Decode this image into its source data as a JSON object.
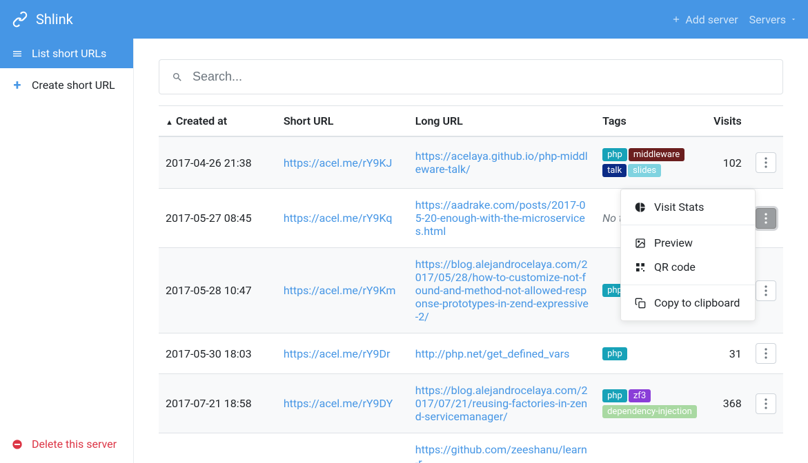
{
  "brand": "Shlink",
  "navbar": {
    "add_server": "Add server",
    "servers": "Servers"
  },
  "sidebar": {
    "list_urls": "List short URLs",
    "create_url": "Create short URL",
    "delete_server": "Delete this server"
  },
  "search": {
    "placeholder": "Search..."
  },
  "table": {
    "headers": {
      "created": "Created at",
      "short": "Short URL",
      "long": "Long URL",
      "tags": "Tags",
      "visits": "Visits"
    },
    "no_tags_label": "No tags",
    "rows": [
      {
        "created": "2017-04-26 21:38",
        "short": "https://acel.me/rY9KJ",
        "long": "https://acelaya.github.io/php-middleware-talk/",
        "tags": [
          {
            "label": "php",
            "color": "#17a2b8"
          },
          {
            "label": "middleware",
            "color": "#6b1e1e"
          },
          {
            "label": "talk",
            "color": "#0b2b86"
          },
          {
            "label": "slides",
            "color": "#7fd3e0"
          }
        ],
        "visits": "102",
        "menu_open": false
      },
      {
        "created": "2017-05-27 08:45",
        "short": "https://acel.me/rY9Kq",
        "long": "https://aadrake.com/posts/2017-05-20-enough-with-the-microservices.html",
        "tags": [],
        "visits": "",
        "menu_open": true
      },
      {
        "created": "2017-05-28 10:47",
        "short": "https://acel.me/rY9Km",
        "long": "https://blog.alejandrocelaya.com/2017/05/28/how-to-customize-not-found-and-method-not-allowed-response-prototypes-in-zend-expressive-2/",
        "tags": [
          {
            "label": "php",
            "color": "#17a2b8"
          }
        ],
        "visits": "",
        "menu_open": false
      },
      {
        "created": "2017-05-30 18:03",
        "short": "https://acel.me/rY9Dr",
        "long": "http://php.net/get_defined_vars",
        "tags": [
          {
            "label": "php",
            "color": "#17a2b8"
          }
        ],
        "visits": "31",
        "menu_open": false
      },
      {
        "created": "2017-07-21 18:58",
        "short": "https://acel.me/rY9DY",
        "long": "https://blog.alejandrocelaya.com/2017/07/21/reusing-factories-in-zend-servicemanager/",
        "tags": [
          {
            "label": "php",
            "color": "#17a2b8"
          },
          {
            "label": "zf3",
            "color": "#8a3ed8"
          },
          {
            "label": "dependency-injection",
            "color": "#a9d9a2"
          }
        ],
        "visits": "368",
        "menu_open": false
      },
      {
        "created": "",
        "short": "",
        "long": "https://github.com/zeeshanu/learn-r",
        "tags": [],
        "visits": "",
        "menu_open": false,
        "partial": true
      }
    ]
  },
  "dropdown": {
    "visit_stats": "Visit Stats",
    "preview": "Preview",
    "qr_code": "QR code",
    "copy": "Copy to clipboard"
  }
}
